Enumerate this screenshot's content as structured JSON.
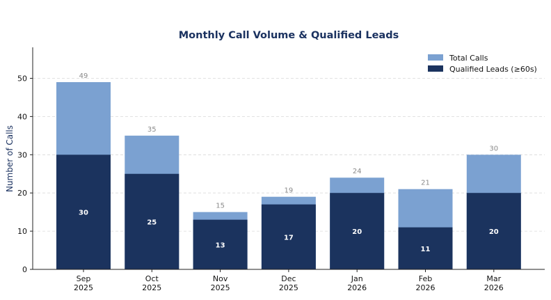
{
  "chart_data": {
    "type": "bar",
    "title": "Monthly Call Volume & Qualified Leads",
    "xlabel": "",
    "ylabel": "Number of Calls",
    "categories": [
      [
        "Sep",
        "2025"
      ],
      [
        "Oct",
        "2025"
      ],
      [
        "Nov",
        "2025"
      ],
      [
        "Dec",
        "2025"
      ],
      [
        "Jan",
        "2026"
      ],
      [
        "Feb",
        "2026"
      ],
      [
        "Mar",
        "2026"
      ]
    ],
    "series": [
      {
        "name": "Total Calls",
        "color": "#7ba1d1",
        "values": [
          49,
          35,
          15,
          19,
          24,
          21,
          30
        ]
      },
      {
        "name": "Qualified Leads (≥60s)",
        "color": "#1b335e",
        "values": [
          30,
          25,
          13,
          17,
          20,
          11,
          20
        ]
      }
    ],
    "ylim": [
      0,
      58
    ],
    "yticks": [
      0,
      10,
      20,
      30,
      40,
      50
    ],
    "grid": true,
    "legend": "top-right",
    "stacking": "overlay"
  }
}
